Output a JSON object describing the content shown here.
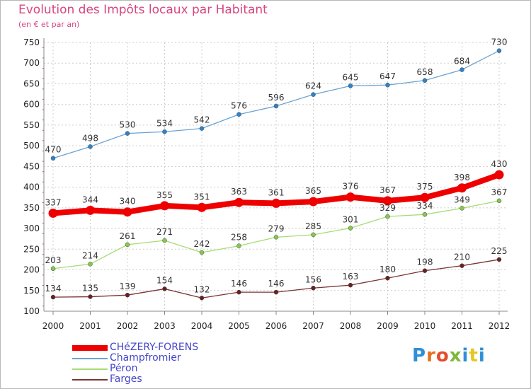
{
  "header": {
    "title": "Evolution des Impôts locaux par Habitant",
    "subtitle": "(en € et par an)"
  },
  "logo": {
    "text": "Proxiti",
    "letter_colors": [
      "#2f8fd6",
      "#e6711f",
      "#e64b2c",
      "#7cb83b",
      "#2f8fd6",
      "#e6c623",
      "#2f8fd6"
    ]
  },
  "colors": {
    "title": "#d6457f",
    "axis_text": "#222222",
    "axis_line": "#888888",
    "grid": "#cccccc",
    "tick_marks": "#e03030",
    "legend_text": "#4545c9",
    "value_labels": "#333333"
  },
  "chart_data": {
    "type": "line",
    "title": "Evolution des Impôts locaux par Habitant",
    "subtitle": "(en € et par an)",
    "xlabel": "",
    "ylabel": "",
    "ylim": [
      100,
      750
    ],
    "ytick_step": 50,
    "grid": true,
    "legend_position": "bottom-left",
    "categories": [
      "2000",
      "2001",
      "2002",
      "2003",
      "2004",
      "2005",
      "2006",
      "2007",
      "2008",
      "2009",
      "2010",
      "2011",
      "2012"
    ],
    "series": [
      {
        "name": "CHéZERY-FORENS",
        "color": "#ee0000",
        "marker_color": "#ee0000",
        "emphasis": "bold",
        "values": [
          337,
          344,
          340,
          355,
          351,
          363,
          361,
          365,
          376,
          367,
          375,
          398,
          430
        ]
      },
      {
        "name": "Champfromier",
        "color": "#6aa3d2",
        "marker_color": "#2d83cc",
        "emphasis": "normal",
        "values": [
          470,
          498,
          530,
          534,
          542,
          576,
          596,
          624,
          645,
          647,
          658,
          684,
          730
        ]
      },
      {
        "name": "Péron",
        "color": "#a6dc74",
        "marker_color": "#86c94b",
        "emphasis": "normal",
        "values": [
          203,
          214,
          261,
          271,
          242,
          258,
          279,
          285,
          301,
          329,
          334,
          349,
          367
        ]
      },
      {
        "name": "Farges",
        "color": "#7a3434",
        "marker_color": "#6b2020",
        "emphasis": "normal",
        "values": [
          134,
          135,
          139,
          154,
          132,
          146,
          146,
          156,
          163,
          180,
          198,
          210,
          225
        ]
      }
    ]
  }
}
